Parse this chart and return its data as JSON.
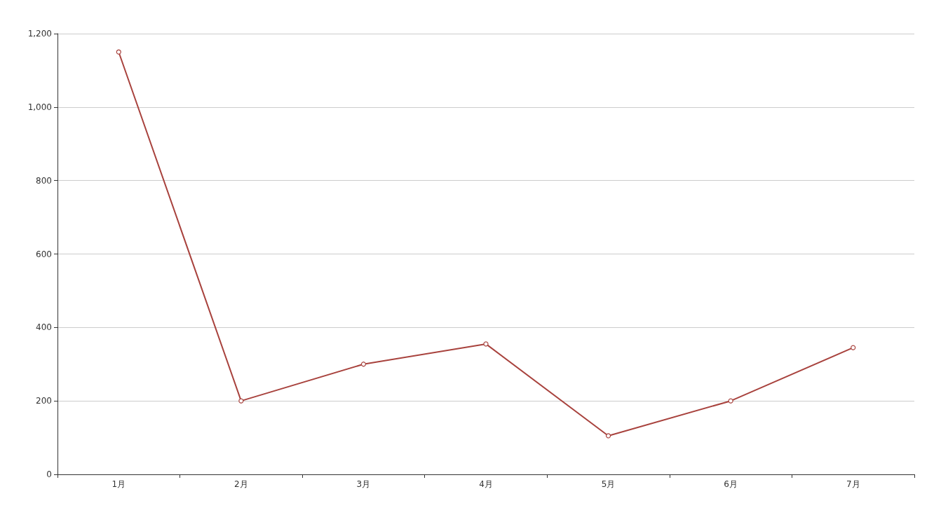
{
  "chart_data": {
    "type": "line",
    "categories": [
      "1月",
      "2月",
      "3月",
      "4月",
      "5月",
      "6月",
      "7月"
    ],
    "series": [
      {
        "color": "#a8423d",
        "values": [
          1150,
          200,
          300,
          355,
          105,
          200,
          345
        ]
      }
    ],
    "ylim": [
      0,
      1200
    ],
    "yticks": [
      {
        "value": 0,
        "label": "0"
      },
      {
        "value": 200,
        "label": "200"
      },
      {
        "value": 400,
        "label": "400"
      },
      {
        "value": 600,
        "label": "600"
      },
      {
        "value": 800,
        "label": "800"
      },
      {
        "value": 1000,
        "label": "1,000"
      },
      {
        "value": 1200,
        "label": "1,200"
      }
    ],
    "grid": "y",
    "marker": "circle"
  }
}
